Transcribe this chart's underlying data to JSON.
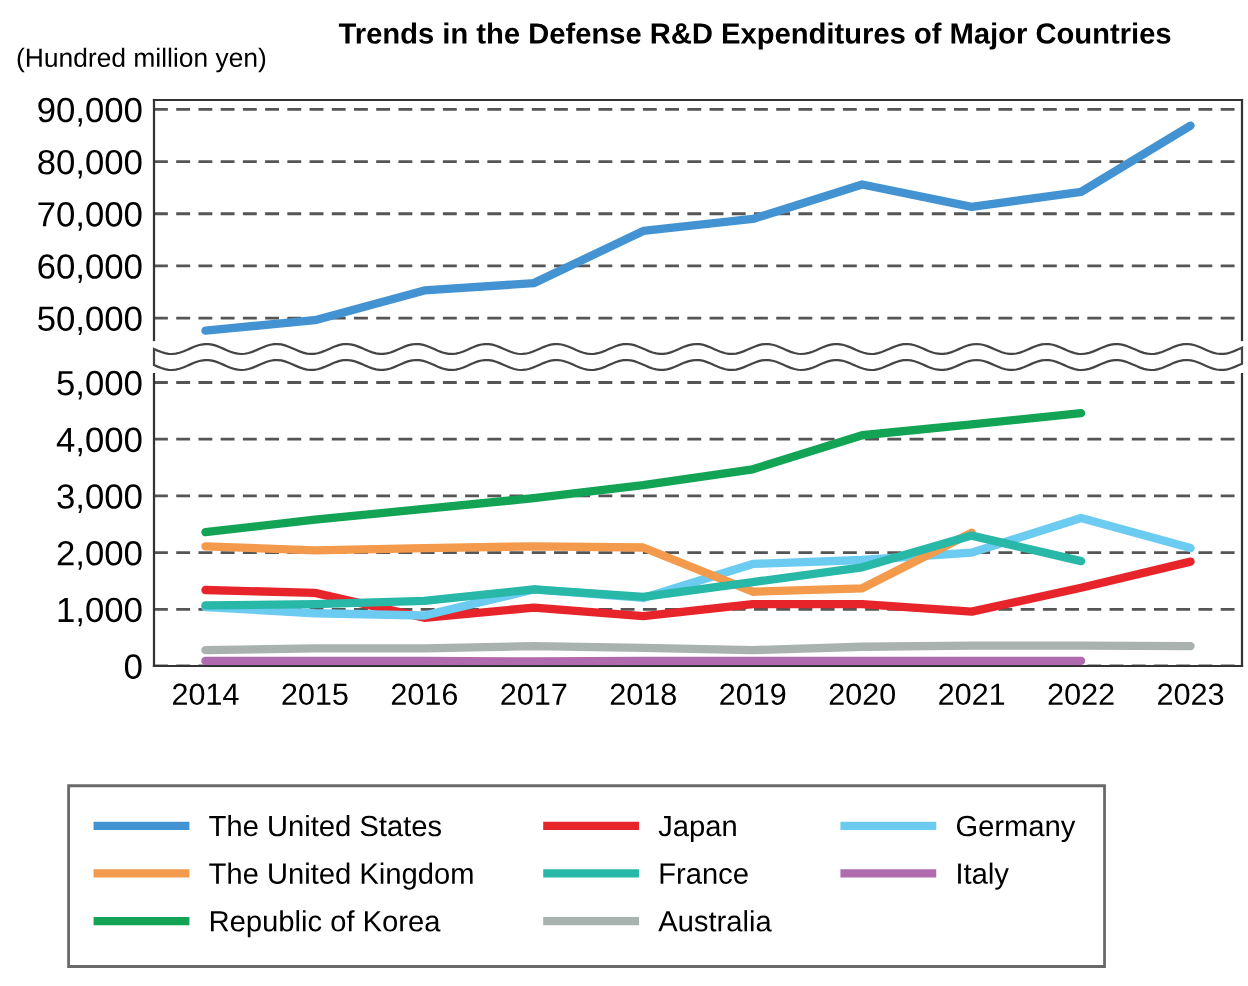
{
  "chart_data": [
    {
      "type": "line",
      "title": "Trends in the Defense R&D Expenditures of Major Countries",
      "ylabel": "(Hundred million yen)",
      "categories": [
        "2014",
        "2015",
        "2016",
        "2017",
        "2018",
        "2019",
        "2020",
        "2021",
        "2022",
        "2023"
      ],
      "series": [
        {
          "name": "The United States",
          "color": "#4393d3",
          "values": [
            47600,
            49600,
            55300,
            56700,
            66700,
            69000,
            75600,
            71300,
            74200,
            86900
          ]
        }
      ],
      "ylim": [
        45800,
        91800
      ],
      "yticks": [
        {
          "value": 50000,
          "label": "50,000"
        },
        {
          "value": 60000,
          "label": "60,000"
        },
        {
          "value": 70000,
          "label": "70,000"
        },
        {
          "value": 80000,
          "label": "80,000"
        },
        {
          "value": 90000,
          "label": "90,000"
        }
      ],
      "tick_labels": "y",
      "grid": "y",
      "line_style": "solid",
      "marker": "none"
    },
    {
      "type": "line",
      "categories": [
        "2014",
        "2015",
        "2016",
        "2017",
        "2018",
        "2019",
        "2020",
        "2021",
        "2022",
        "2023"
      ],
      "series": [
        {
          "name": "Japan",
          "color": "#e8242b",
          "values": [
            1340,
            1290,
            850,
            1030,
            880,
            1090,
            1090,
            960,
            1380,
            1840
          ]
        },
        {
          "name": "Germany",
          "color": "#6ccbf0",
          "values": [
            1040,
            930,
            890,
            1350,
            1200,
            1800,
            1870,
            2000,
            2610,
            2080
          ]
        },
        {
          "name": "The United Kingdom",
          "color": "#f39a4c",
          "values": [
            2110,
            2040,
            2080,
            2110,
            2090,
            1310,
            1370,
            2350,
            null,
            null
          ]
        },
        {
          "name": "France",
          "color": "#28b8a8",
          "values": [
            1070,
            1090,
            1150,
            1350,
            1220,
            1480,
            1740,
            2300,
            1850,
            null
          ]
        },
        {
          "name": "Italy",
          "color": "#b06aae",
          "values": [
            90,
            90,
            90,
            80,
            90,
            90,
            90,
            90,
            90,
            null
          ]
        },
        {
          "name": "Republic of Korea",
          "color": "#12a454",
          "values": [
            2360,
            2580,
            2770,
            2960,
            3190,
            3470,
            4070,
            4260,
            4460,
            null
          ]
        },
        {
          "name": "Australia",
          "color": "#a9b2ae",
          "values": [
            280,
            310,
            310,
            350,
            320,
            280,
            340,
            360,
            360,
            350
          ]
        }
      ],
      "ylim": [
        0,
        5150
      ],
      "yticks": [
        0,
        {
          "value": 1000,
          "label": "1,000"
        },
        {
          "value": 2000,
          "label": "2,000"
        },
        {
          "value": 3000,
          "label": "3,000"
        },
        {
          "value": 4000,
          "label": "4,000"
        },
        {
          "value": 5000,
          "label": "5,000"
        }
      ],
      "grid": "y",
      "legend": "bottom",
      "line_style": "solid",
      "marker": "none"
    }
  ]
}
